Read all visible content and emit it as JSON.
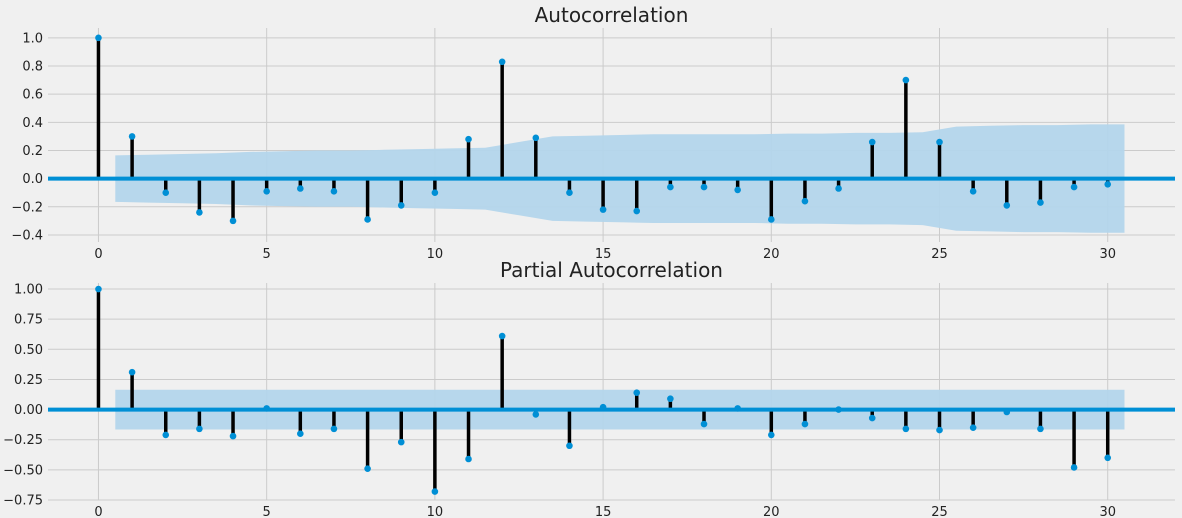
{
  "chart_data": [
    {
      "type": "stem",
      "title": "Autocorrelation",
      "xlabel": "",
      "ylabel": "",
      "xlim": [
        -1.5,
        32
      ],
      "ylim": [
        -0.45,
        1.07
      ],
      "xticks": [
        0,
        5,
        10,
        15,
        20,
        25,
        30
      ],
      "yticks": [
        -0.4,
        -0.2,
        0.0,
        0.2,
        0.4,
        0.6,
        0.8,
        1.0
      ],
      "ytick_labels": [
        "−0.4",
        "−0.2",
        "0.0",
        "0.2",
        "0.4",
        "0.6",
        "0.8",
        "1.0"
      ],
      "grid": true,
      "lags": [
        0,
        1,
        2,
        3,
        4,
        5,
        6,
        7,
        8,
        9,
        10,
        11,
        12,
        13,
        14,
        15,
        16,
        17,
        18,
        19,
        20,
        21,
        22,
        23,
        24,
        25,
        26,
        27,
        28,
        29,
        30
      ],
      "values": [
        1.0,
        0.3,
        -0.1,
        -0.24,
        -0.3,
        -0.09,
        -0.07,
        -0.09,
        -0.29,
        -0.19,
        -0.1,
        0.28,
        0.83,
        0.29,
        -0.1,
        -0.22,
        -0.23,
        -0.06,
        -0.06,
        -0.08,
        -0.29,
        -0.16,
        -0.07,
        0.26,
        0.7,
        0.26,
        -0.09,
        -0.19,
        -0.17,
        -0.06,
        -0.04
      ],
      "confint_x": [
        0.5,
        1.5,
        2.5,
        3.5,
        4.5,
        5.5,
        6.5,
        7.5,
        8.5,
        9.5,
        10.5,
        11.5,
        12.5,
        13.5,
        14.5,
        15.5,
        16.5,
        17.5,
        18.5,
        19.5,
        20.5,
        21.5,
        22.5,
        23.5,
        24.5,
        25.5,
        26.5,
        27.5,
        28.5,
        29.5,
        30.5
      ],
      "confint_upper": [
        0.165,
        0.17,
        0.175,
        0.18,
        0.19,
        0.195,
        0.2,
        0.2,
        0.205,
        0.21,
        0.215,
        0.22,
        0.26,
        0.3,
        0.305,
        0.31,
        0.315,
        0.315,
        0.315,
        0.315,
        0.32,
        0.32,
        0.325,
        0.325,
        0.33,
        0.37,
        0.375,
        0.38,
        0.38,
        0.385,
        0.385
      ],
      "colors": {
        "stem": "#000000",
        "marker": "#008fd5",
        "band": "#b3d5eb",
        "zero_line": "#008fd5",
        "grid": "#cbcbcb",
        "background": "#f0f0f0"
      }
    },
    {
      "type": "stem",
      "title": "Partial Autocorrelation",
      "xlabel": "",
      "ylabel": "",
      "xlim": [
        -1.5,
        32
      ],
      "ylim": [
        -0.75,
        1.05
      ],
      "xticks": [
        0,
        5,
        10,
        15,
        20,
        25,
        30
      ],
      "yticks": [
        -0.75,
        -0.5,
        -0.25,
        0.0,
        0.25,
        0.5,
        0.75,
        1.0
      ],
      "ytick_labels": [
        "−0.75",
        "−0.50",
        "−0.25",
        "0.00",
        "0.25",
        "0.50",
        "0.75",
        "1.00"
      ],
      "grid": true,
      "lags": [
        0,
        1,
        2,
        3,
        4,
        5,
        6,
        7,
        8,
        9,
        10,
        11,
        12,
        13,
        14,
        15,
        16,
        17,
        18,
        19,
        20,
        21,
        22,
        23,
        24,
        25,
        26,
        27,
        28,
        29,
        30
      ],
      "values": [
        1.0,
        0.31,
        -0.21,
        -0.16,
        -0.22,
        0.01,
        -0.2,
        -0.16,
        -0.49,
        -0.27,
        -0.68,
        -0.41,
        0.61,
        -0.04,
        -0.3,
        0.02,
        0.14,
        0.09,
        -0.12,
        0.01,
        -0.21,
        -0.12,
        0.0,
        -0.07,
        -0.16,
        -0.17,
        -0.15,
        -0.02,
        -0.16,
        -0.48,
        -0.4
      ],
      "confint_x": [
        0.5,
        30.5
      ],
      "confint_upper": [
        0.165,
        0.165
      ],
      "colors": {
        "stem": "#000000",
        "marker": "#008fd5",
        "band": "#b3d5eb",
        "zero_line": "#008fd5",
        "grid": "#cbcbcb",
        "background": "#f0f0f0"
      }
    }
  ]
}
